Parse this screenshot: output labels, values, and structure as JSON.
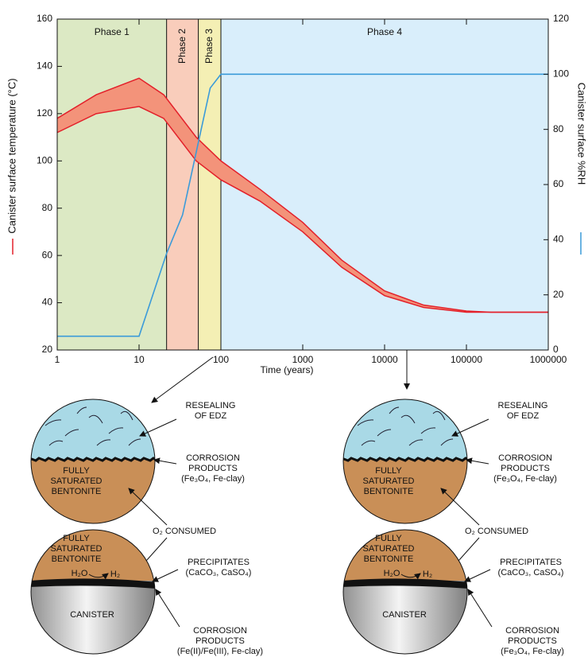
{
  "chart_data": {
    "type": "line",
    "xlabel": "Time (years)",
    "ylabel": "Canister surface temperature (°C)",
    "y2label": "Canister surface %RH",
    "xscale": "log",
    "xlim": [
      1,
      1000000
    ],
    "xticks": [
      1,
      10,
      100,
      1000,
      10000,
      100000,
      1000000
    ],
    "ylim": [
      20,
      160
    ],
    "yticks": [
      20,
      40,
      60,
      80,
      100,
      120,
      140,
      160
    ],
    "y2lim": [
      0,
      120
    ],
    "y2ticks": [
      0,
      20,
      40,
      60,
      80,
      100,
      120
    ],
    "phases": [
      {
        "name": "Phase 1",
        "start": 1,
        "end": 21.7,
        "color": "#dce9c4",
        "rotated": false
      },
      {
        "name": "Phase 2",
        "start": 21.7,
        "end": 53,
        "color": "#f9cdbb",
        "rotated": true
      },
      {
        "name": "Phase 3",
        "start": 53,
        "end": 100,
        "color": "#f4efb4",
        "rotated": true
      },
      {
        "name": "Phase 4",
        "start": 100,
        "end": 1000000,
        "color": "#d9eefb",
        "rotated": false
      }
    ],
    "series": [
      {
        "kind": "band",
        "axis": "y",
        "color": "#e3202a",
        "fill": "#f3937a",
        "x": [
          1,
          3,
          10,
          20,
          50,
          100,
          300,
          1000,
          3000,
          10000,
          30000,
          100000,
          200000,
          1000000
        ],
        "upper": [
          118,
          128,
          135,
          128,
          110,
          100,
          88,
          74,
          58,
          45,
          39,
          36.5,
          36,
          36
        ],
        "lower": [
          112,
          120,
          123,
          118,
          100,
          92,
          83,
          70,
          55,
          43,
          38,
          36,
          36,
          36
        ]
      },
      {
        "kind": "line",
        "axis": "y2",
        "color": "#3b9bd9",
        "x": [
          1,
          10,
          21.7,
          34,
          74,
          100,
          1000000
        ],
        "values": [
          5,
          5,
          35,
          49,
          95,
          100,
          100
        ]
      }
    ]
  },
  "diagrams": [
    {
      "upper": {
        "top_label": [
          "RESEALING",
          "OF EDZ"
        ],
        "right_label": [
          "CORROSION",
          "PRODUCTS",
          "(Fe₃O₄, Fe-clay)"
        ],
        "inner_label": [
          "FULLY",
          "SATURATED",
          "BENTONITE"
        ]
      },
      "middle_label": "O₂ CONSUMED",
      "lower": {
        "inner_label": [
          "FULLY",
          "SATURATED",
          "BENTONITE"
        ],
        "reaction": [
          "H₂O",
          "H₂"
        ],
        "right_top_label": [
          "PRECIPITATES",
          "(CaCO₃, CaSO₄)"
        ],
        "canister_label": "CANISTER",
        "right_bottom_label": [
          "CORROSION",
          "PRODUCTS",
          "(Fe(II)/Fe(III), Fe-clay)"
        ]
      }
    },
    {
      "upper": {
        "top_label": [
          "RESEALING",
          "OF EDZ"
        ],
        "right_label": [
          "CORROSION",
          "PRODUCTS",
          "(Fe₃O₄, Fe-clay)"
        ],
        "inner_label": [
          "FULLY",
          "SATURATED",
          "BENTONITE"
        ]
      },
      "middle_label": "O₂ CONSUMED",
      "lower": {
        "inner_label": [
          "FULLY",
          "SATURATED",
          "BENTONITE"
        ],
        "reaction": [
          "H₂O",
          "H₂"
        ],
        "right_top_label": [
          "PRECIPITATES",
          "(CaCO₃, CaSO₄)"
        ],
        "canister_label": "CANISTER",
        "right_bottom_label": [
          "CORROSION",
          "PRODUCTS",
          "(Fe₃O₄, Fe-clay)"
        ]
      }
    }
  ]
}
